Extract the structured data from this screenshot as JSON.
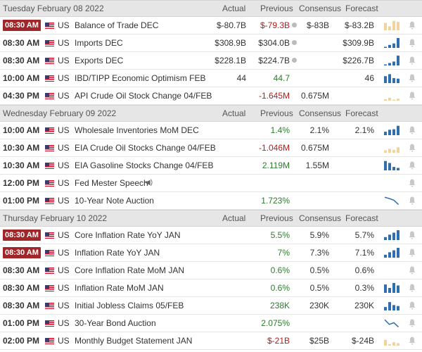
{
  "columns": {
    "actual": "Actual",
    "previous": "Previous",
    "consensus": "Consensus",
    "forecast": "Forecast"
  },
  "days": [
    {
      "date": "Tuesday February 08 2022",
      "events": [
        {
          "time": "08:30 AM",
          "hl": true,
          "cur": "US",
          "name": "Balance of Trade DEC",
          "actual": "$-80.7B",
          "previous": "$-79.3B",
          "prev_color": "#b31c1c",
          "revised": true,
          "consensus": "$-83B",
          "forecast": "$-83.2B",
          "chart": "bars_tan",
          "bars": [
            0.75,
            0.4,
            0.95,
            0.85
          ]
        },
        {
          "time": "08:30 AM",
          "hl": false,
          "cur": "US",
          "name": "Imports DEC",
          "actual": "$308.9B",
          "previous": "$304.0B",
          "prev_color": "#333333",
          "revised": true,
          "consensus": "",
          "forecast": "$309.9B",
          "chart": "bars_blue",
          "bars": [
            0.1,
            0.3,
            0.45,
            1.0
          ]
        },
        {
          "time": "08:30 AM",
          "hl": false,
          "cur": "US",
          "name": "Exports DEC",
          "actual": "$228.1B",
          "previous": "$224.7B",
          "prev_color": "#333333",
          "revised": true,
          "consensus": "",
          "forecast": "$226.7B",
          "chart": "bars_blue",
          "bars": [
            0.1,
            0.25,
            0.4,
            1.0
          ]
        },
        {
          "time": "10:00 AM",
          "hl": false,
          "cur": "US",
          "name": "IBD/TIPP Economic Optimism FEB",
          "actual": "44",
          "previous": "44.7",
          "prev_color": "#2f7a2f",
          "revised": false,
          "consensus": "",
          "forecast": "46",
          "chart": "bars_blue",
          "bars": [
            0.7,
            0.9,
            0.5,
            0.45
          ]
        },
        {
          "time": "04:30 PM",
          "hl": false,
          "cur": "US",
          "name": "API Crude Oil Stock Change 04/FEB",
          "actual": "",
          "previous": "-1.645M",
          "prev_color": "#b31c1c",
          "revised": false,
          "consensus": "0.675M",
          "forecast": "",
          "chart": "bars_tan",
          "bars": [
            0.15,
            0.3,
            0.1,
            0.2
          ]
        }
      ]
    },
    {
      "date": "Wednesday February 09 2022",
      "events": [
        {
          "time": "10:00 AM",
          "hl": false,
          "cur": "US",
          "name": "Wholesale Inventories MoM DEC",
          "actual": "",
          "previous": "1.4%",
          "prev_color": "#2f7a2f",
          "revised": false,
          "consensus": "2.1%",
          "forecast": "2.1%",
          "chart": "bars_blue",
          "bars": [
            0.35,
            0.55,
            0.6,
            0.95
          ]
        },
        {
          "time": "10:30 AM",
          "hl": false,
          "cur": "US",
          "name": "EIA Crude Oil Stocks Change 04/FEB",
          "actual": "",
          "previous": "-1.046M",
          "prev_color": "#b31c1c",
          "revised": false,
          "consensus": "0.675M",
          "forecast": "",
          "chart": "bars_tan",
          "bars": [
            0.25,
            0.4,
            0.3,
            0.55
          ]
        },
        {
          "time": "10:30 AM",
          "hl": false,
          "cur": "US",
          "name": "EIA Gasoline Stocks Change 04/FEB",
          "actual": "",
          "previous": "2.119M",
          "prev_color": "#2f7a2f",
          "revised": false,
          "consensus": "1.55M",
          "forecast": "",
          "chart": "bars_blue",
          "bars": [
            0.95,
            0.75,
            0.35,
            0.25
          ]
        },
        {
          "time": "12:00 PM",
          "hl": false,
          "cur": "US",
          "name": "Fed Mester Speech",
          "speech": true,
          "actual": "",
          "previous": "",
          "prev_color": "#333333",
          "revised": false,
          "consensus": "",
          "forecast": "",
          "chart": "none",
          "bars": []
        },
        {
          "time": "01:00 PM",
          "hl": false,
          "cur": "US",
          "name": "10-Year Note Auction",
          "actual": "",
          "previous": "1.723%",
          "prev_color": "#2f7a2f",
          "revised": false,
          "consensus": "",
          "forecast": "",
          "chart": "line",
          "bars": [
            0.9,
            0.75,
            0.55,
            0.05
          ]
        }
      ]
    },
    {
      "date": "Thursday February 10 2022",
      "events": [
        {
          "time": "08:30 AM",
          "hl": true,
          "cur": "US",
          "name": "Core Inflation Rate YoY JAN",
          "actual": "",
          "previous": "5.5%",
          "prev_color": "#2f7a2f",
          "revised": false,
          "consensus": "5.9%",
          "forecast": "5.7%",
          "chart": "bars_blue",
          "bars": [
            0.3,
            0.55,
            0.75,
            1.0
          ]
        },
        {
          "time": "08:30 AM",
          "hl": true,
          "cur": "US",
          "name": "Inflation Rate YoY JAN",
          "actual": "",
          "previous": "7%",
          "prev_color": "#2f7a2f",
          "revised": false,
          "consensus": "7.3%",
          "forecast": "7.1%",
          "chart": "bars_blue",
          "bars": [
            0.3,
            0.55,
            0.75,
            1.0
          ]
        },
        {
          "time": "08:30 AM",
          "hl": false,
          "cur": "US",
          "name": "Core Inflation Rate MoM JAN",
          "actual": "",
          "previous": "0.6%",
          "prev_color": "#2f7a2f",
          "revised": false,
          "consensus": "0.5%",
          "forecast": "0.6%",
          "chart": "none",
          "bars": []
        },
        {
          "time": "08:30 AM",
          "hl": false,
          "cur": "US",
          "name": "Inflation Rate MoM JAN",
          "actual": "",
          "previous": "0.6%",
          "prev_color": "#2f7a2f",
          "revised": false,
          "consensus": "0.5%",
          "forecast": "0.3%",
          "chart": "bars_blue",
          "bars": [
            0.85,
            0.5,
            1.0,
            0.75
          ]
        },
        {
          "time": "08:30 AM",
          "hl": false,
          "cur": "US",
          "name": "Initial Jobless Claims 05/FEB",
          "actual": "",
          "previous": "238K",
          "prev_color": "#2f7a2f",
          "revised": false,
          "consensus": "230K",
          "forecast": "230K",
          "chart": "bars_blue",
          "bars": [
            0.35,
            0.85,
            0.55,
            0.45
          ]
        },
        {
          "time": "01:00 PM",
          "hl": false,
          "cur": "US",
          "name": "30-Year Bond Auction",
          "actual": "",
          "previous": "2.075%",
          "prev_color": "#2f7a2f",
          "revised": false,
          "consensus": "",
          "forecast": "",
          "chart": "line",
          "bars": [
            0.9,
            0.35,
            0.55,
            0.05
          ]
        },
        {
          "time": "02:00 PM",
          "hl": false,
          "cur": "US",
          "name": "Monthly Budget Statement JAN",
          "actual": "",
          "previous": "$-21B",
          "prev_color": "#b31c1c",
          "revised": false,
          "consensus": "$25B",
          "forecast": "$-24B",
          "chart": "bars_tan",
          "bars": [
            0.6,
            0.15,
            0.35,
            0.25
          ]
        }
      ]
    }
  ],
  "colors": {
    "bar_blue": "#2f6fb0",
    "bar_tan": "#f2d3a0",
    "line": "#2f6fb0",
    "bell": "#c8c8c8",
    "highlight": "#a0262a"
  }
}
